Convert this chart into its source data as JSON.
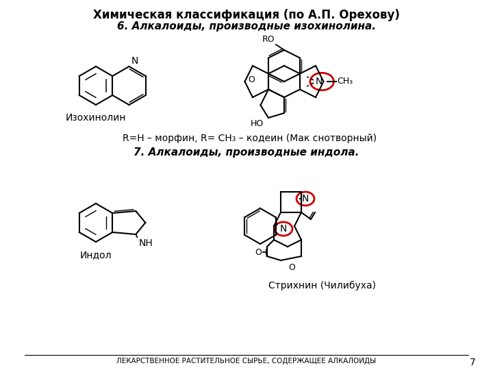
{
  "title": "Химическая классификация (по А.П. Орехову)",
  "section6": "6. Алкалоиды, производные изохинолина.",
  "section7": "7. Алкалоиды, производные индола.",
  "label_isoquinoline": "Изохинолин",
  "label_indole": "Индол",
  "label_strychnine": "Стрихнин (Чилибуха)",
  "caption_morphine": "R=H – морфин, R= CH₃ – кодеин (Мак снотворный)",
  "footer": "ЛЕКАРСТВЕННОЕ РАСТИТЕЛЬНОЕ СЫРЬЕ, СОДЕРЖАЩЕЕ АЛКАЛОИДЫ",
  "page_num": "7",
  "bg_color": "#ffffff",
  "text_color": "#000000",
  "red_circle_color": "#cc0000",
  "line_color": "#000000"
}
